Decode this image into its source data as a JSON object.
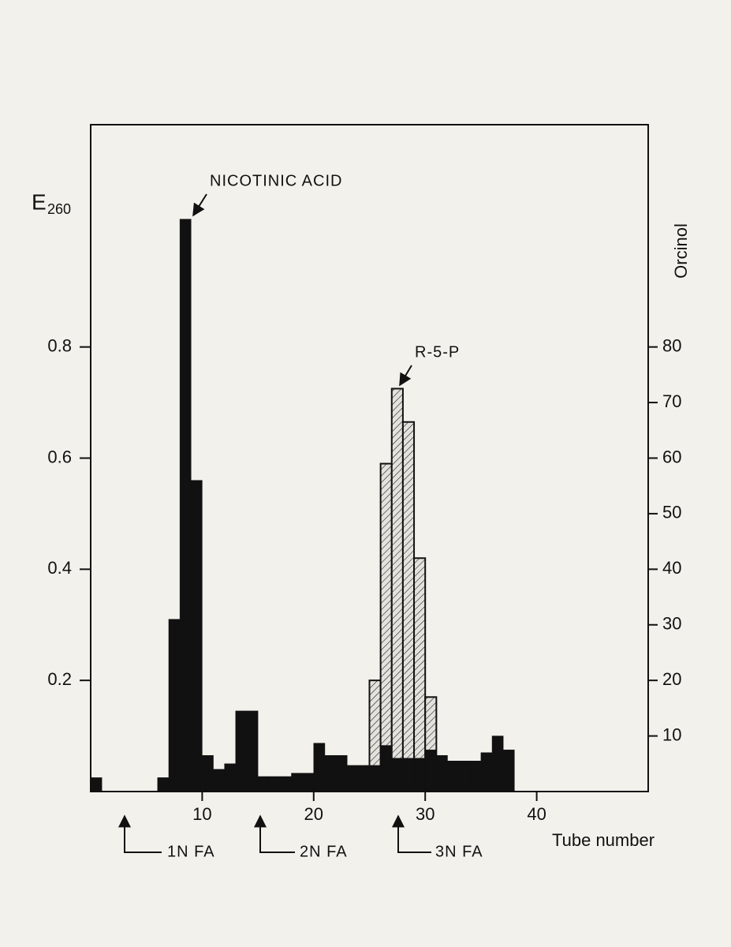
{
  "chart_data": {
    "type": "histogram",
    "xlabel": "Tube number",
    "ylabel": "E",
    "ylabel_subscript": "260",
    "y2label": "Orcinol",
    "xlim": [
      0,
      50
    ],
    "xticks": [
      10,
      20,
      30,
      40
    ],
    "ylim": [
      0,
      1.2
    ],
    "yticks": [
      0.2,
      0.4,
      0.6,
      0.8
    ],
    "y2lim": [
      0,
      120
    ],
    "y2ticks": [
      10,
      20,
      30,
      40,
      50,
      60,
      70,
      80
    ],
    "series": [
      {
        "color": "#111111",
        "axis": "y2",
        "pattern": "hatch",
        "bins": [
          25,
          26,
          27,
          28,
          29,
          30,
          31
        ],
        "values": [
          20,
          59,
          72.5,
          66.5,
          42,
          17
        ]
      },
      {
        "color": "#111111",
        "bins": [
          0,
          1,
          2,
          3,
          4,
          5,
          6,
          7,
          8,
          9,
          10,
          11,
          12,
          13,
          14,
          15,
          16,
          17,
          18,
          19,
          20,
          21,
          22,
          23,
          24,
          25,
          26,
          27,
          28,
          29,
          30,
          31,
          32,
          33,
          34,
          35,
          36,
          37,
          38
        ],
        "values": [
          0.025,
          0,
          0,
          0,
          0,
          0,
          0.025,
          0.31,
          1.03,
          0.56,
          0.065,
          0.04,
          0.05,
          0.145,
          0.145,
          0.027,
          0.027,
          0.027,
          0.033,
          0.033,
          0.087,
          0.065,
          0.065,
          0.047,
          0.047,
          0.047,
          0.083,
          0.06,
          0.06,
          0.06,
          0.075,
          0.065,
          0.055,
          0.055,
          0.055,
          0.07,
          0.1,
          0.075
        ]
      }
    ],
    "annotations": [
      "NICOTINIC ACID",
      "R-5-P",
      "1N FA",
      "2N FA",
      "3N FA"
    ]
  }
}
